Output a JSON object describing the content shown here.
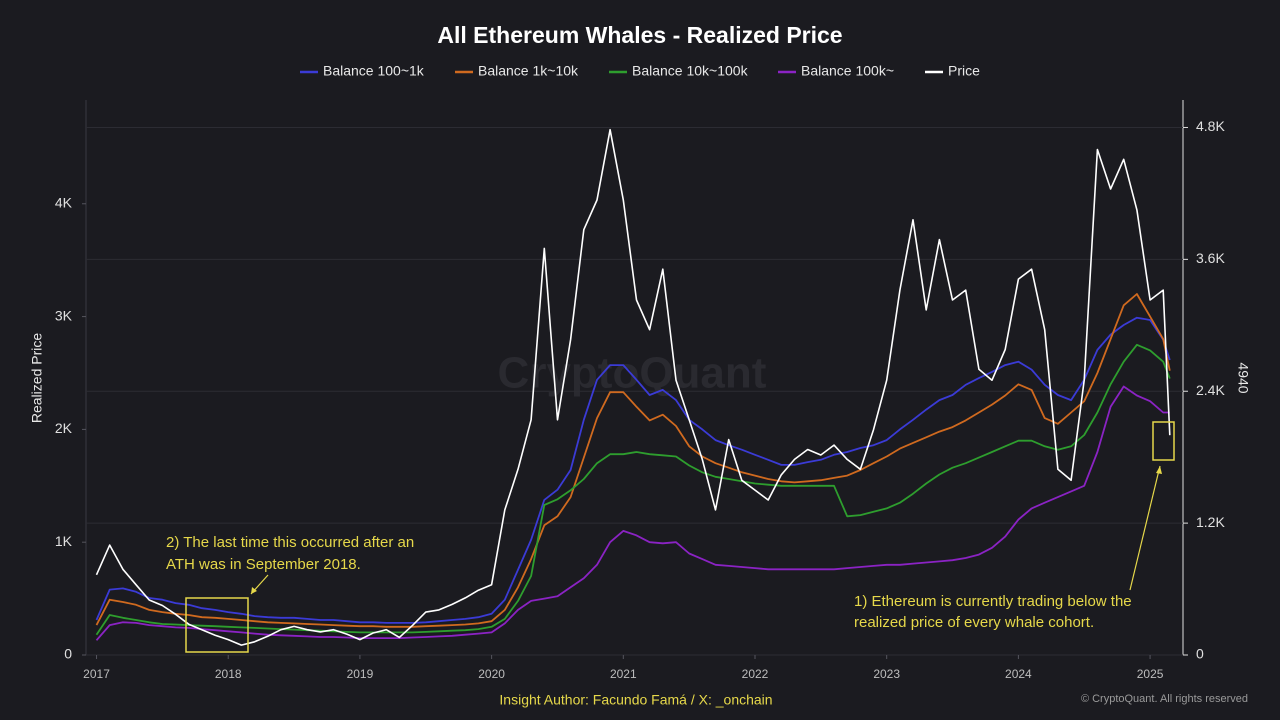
{
  "chart_data": {
    "type": "line",
    "title": "All Ethereum Whales - Realized Price",
    "ylabel": "Realized Price",
    "y2label": "4940",
    "watermark": "CryptoQuant",
    "footer": "Insight Author: Facundo Famá / X: _onchain",
    "copyright": "© CryptoQuant. All rights reserved",
    "annotations": [
      {
        "lines": [
          "2) The last time this occurred after an",
          "ATH was in September 2018."
        ]
      },
      {
        "lines": [
          "1) Ethereum is currently trading below the",
          "realized price of every whale cohort."
        ]
      }
    ],
    "xlim": [
      2016.92,
      2025.25
    ],
    "xticks": [
      2017,
      2018,
      2019,
      2020,
      2021,
      2022,
      2023,
      2024,
      2025
    ],
    "ylim": [
      0,
      4920
    ],
    "yticks": [
      0,
      {
        "value": 1000,
        "label": "1K"
      },
      {
        "value": 2000,
        "label": "2K"
      },
      {
        "value": 3000,
        "label": "3K"
      },
      {
        "value": 4000,
        "label": "4K"
      }
    ],
    "y2lim": [
      0,
      5050
    ],
    "y2ticks": [
      0,
      {
        "value": 1200,
        "label": "1.2K"
      },
      {
        "value": 2400,
        "label": "2.4K"
      },
      {
        "value": 3600,
        "label": "3.6K"
      },
      {
        "value": 4800,
        "label": "4.8K"
      }
    ],
    "grid": true,
    "legend": "top",
    "x": [
      2017.0,
      2017.1,
      2017.2,
      2017.3,
      2017.4,
      2017.5,
      2017.6,
      2017.7,
      2017.8,
      2017.9,
      2018.0,
      2018.1,
      2018.2,
      2018.3,
      2018.4,
      2018.5,
      2018.6,
      2018.7,
      2018.8,
      2018.9,
      2019.0,
      2019.1,
      2019.2,
      2019.3,
      2019.4,
      2019.5,
      2019.6,
      2019.7,
      2019.8,
      2019.9,
      2020.0,
      2020.1,
      2020.2,
      2020.3,
      2020.4,
      2020.5,
      2020.6,
      2020.7,
      2020.8,
      2020.9,
      2021.0,
      2021.1,
      2021.2,
      2021.3,
      2021.4,
      2021.5,
      2021.6,
      2021.7,
      2021.8,
      2021.9,
      2022.0,
      2022.1,
      2022.2,
      2022.3,
      2022.4,
      2022.5,
      2022.6,
      2022.7,
      2022.8,
      2022.9,
      2023.0,
      2023.1,
      2023.2,
      2023.3,
      2023.4,
      2023.5,
      2023.6,
      2023.7,
      2023.8,
      2023.9,
      2024.0,
      2024.1,
      2024.2,
      2024.3,
      2024.4,
      2024.5,
      2024.6,
      2024.7,
      2024.8,
      2024.9,
      2025.0,
      2025.1,
      2025.15
    ],
    "series": [
      {
        "name": "Balance 100~1k",
        "color": "#3b3bd6",
        "values": [
          310,
          580,
          590,
          560,
          505,
          490,
          460,
          445,
          415,
          400,
          380,
          365,
          345,
          335,
          330,
          330,
          320,
          310,
          310,
          300,
          290,
          290,
          285,
          285,
          285,
          290,
          300,
          310,
          320,
          335,
          365,
          490,
          755,
          1020,
          1375,
          1465,
          1640,
          2085,
          2440,
          2570,
          2570,
          2440,
          2305,
          2350,
          2260,
          2085,
          2000,
          1905,
          1860,
          1820,
          1775,
          1730,
          1685,
          1685,
          1710,
          1730,
          1775,
          1800,
          1835,
          1860,
          1905,
          2000,
          2085,
          2175,
          2260,
          2305,
          2395,
          2455,
          2510,
          2570,
          2600,
          2530,
          2395,
          2305,
          2260,
          2440,
          2705,
          2840,
          2925,
          2990,
          2970,
          2795,
          2615
        ]
      },
      {
        "name": "Balance 1k~10k",
        "color": "#d06a1f",
        "values": [
          265,
          490,
          470,
          445,
          400,
          380,
          365,
          355,
          335,
          330,
          320,
          310,
          300,
          290,
          285,
          280,
          275,
          270,
          265,
          260,
          255,
          255,
          250,
          250,
          250,
          255,
          260,
          265,
          270,
          280,
          300,
          400,
          600,
          850,
          1150,
          1230,
          1400,
          1750,
          2100,
          2330,
          2330,
          2200,
          2080,
          2130,
          2030,
          1850,
          1760,
          1700,
          1660,
          1620,
          1590,
          1560,
          1540,
          1530,
          1540,
          1550,
          1570,
          1590,
          1640,
          1700,
          1760,
          1830,
          1880,
          1930,
          1980,
          2020,
          2080,
          2150,
          2220,
          2300,
          2400,
          2350,
          2100,
          2050,
          2150,
          2250,
          2500,
          2800,
          3100,
          3200,
          3000,
          2800,
          2520
        ]
      },
      {
        "name": "Balance 10k~100k",
        "color": "#2e9e2e",
        "values": [
          180,
          355,
          330,
          310,
          290,
          275,
          270,
          265,
          260,
          255,
          250,
          245,
          240,
          235,
          230,
          225,
          220,
          215,
          210,
          205,
          200,
          200,
          200,
          200,
          200,
          205,
          210,
          215,
          220,
          230,
          250,
          320,
          480,
          700,
          1330,
          1380,
          1460,
          1560,
          1700,
          1780,
          1780,
          1800,
          1780,
          1770,
          1760,
          1680,
          1620,
          1580,
          1560,
          1540,
          1520,
          1510,
          1500,
          1500,
          1500,
          1500,
          1500,
          1230,
          1240,
          1270,
          1300,
          1350,
          1430,
          1520,
          1600,
          1660,
          1700,
          1750,
          1800,
          1850,
          1900,
          1900,
          1850,
          1820,
          1850,
          1950,
          2150,
          2400,
          2600,
          2750,
          2700,
          2600,
          2450
        ]
      },
      {
        "name": "Balance 100k~",
        "color": "#8b23c4",
        "values": [
          130,
          265,
          290,
          285,
          265,
          255,
          245,
          240,
          230,
          220,
          210,
          200,
          190,
          180,
          175,
          170,
          165,
          160,
          160,
          155,
          150,
          150,
          150,
          150,
          155,
          160,
          165,
          170,
          180,
          190,
          200,
          280,
          400,
          480,
          500,
          520,
          600,
          680,
          800,
          1000,
          1100,
          1060,
          1000,
          990,
          1000,
          900,
          850,
          800,
          790,
          780,
          770,
          760,
          760,
          760,
          760,
          760,
          760,
          770,
          780,
          790,
          800,
          800,
          810,
          820,
          830,
          840,
          860,
          890,
          950,
          1050,
          1200,
          1300,
          1350,
          1400,
          1450,
          1500,
          1800,
          2200,
          2380,
          2300,
          2250,
          2150,
          2150
        ]
      },
      {
        "name": "Price",
        "color": "#ffffff",
        "axis": "y2",
        "values": [
          730,
          1000,
          780,
          640,
          500,
          450,
          370,
          280,
          230,
          180,
          140,
          90,
          120,
          170,
          230,
          260,
          230,
          210,
          230,
          190,
          140,
          200,
          230,
          160,
          270,
          390,
          410,
          460,
          520,
          590,
          640,
          1320,
          1690,
          2140,
          3700,
          2140,
          2870,
          3870,
          4140,
          4780,
          4140,
          3230,
          2960,
          3510,
          2500,
          2140,
          1780,
          1320,
          1960,
          1590,
          1500,
          1410,
          1640,
          1780,
          1870,
          1820,
          1910,
          1780,
          1690,
          2050,
          2500,
          3320,
          3960,
          3140,
          3780,
          3230,
          3320,
          2600,
          2500,
          2780,
          3420,
          3510,
          2960,
          1690,
          1590,
          2500,
          4600,
          4240,
          4510,
          4050,
          3230,
          3320,
          2000
        ]
      }
    ]
  }
}
